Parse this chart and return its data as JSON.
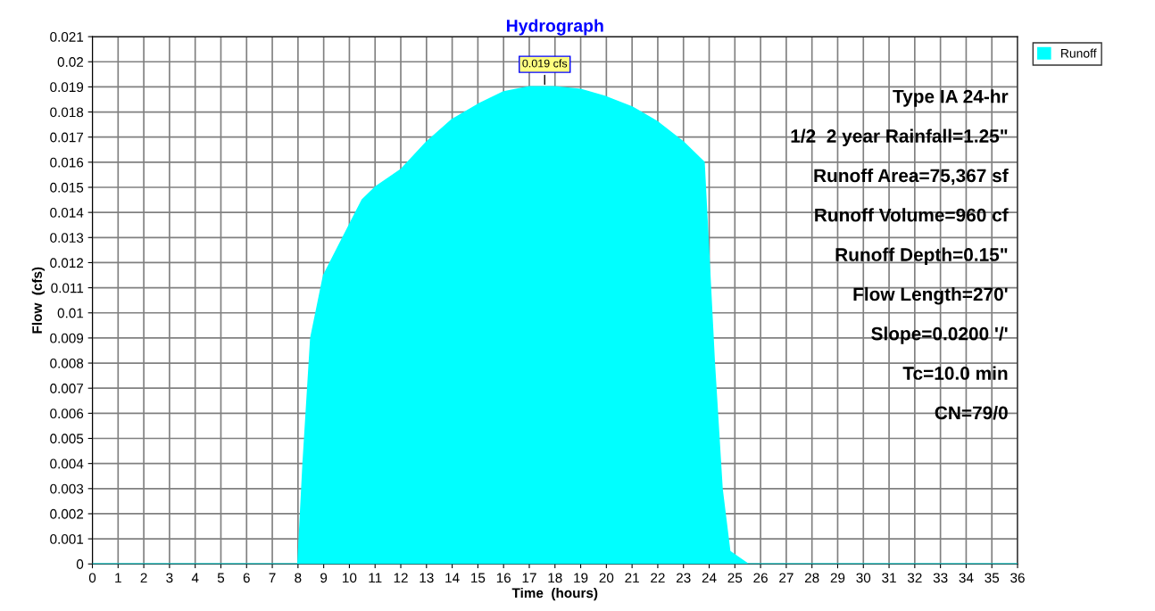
{
  "chart_data": {
    "type": "area",
    "title": "Hydrograph",
    "xlabel": "Time  (hours)",
    "ylabel": "Flow  (cfs)",
    "x": [
      0,
      8,
      8.2,
      8.5,
      9,
      9.5,
      10,
      10.5,
      11,
      12,
      13,
      14,
      15,
      16,
      17,
      18,
      19,
      20,
      21,
      22,
      23,
      23.8,
      24.2,
      24.5,
      24.8,
      25.5,
      36
    ],
    "series": [
      {
        "name": "Runoff",
        "color": "#00ffff",
        "values": [
          0,
          0,
          0.004,
          0.009,
          0.0115,
          0.0125,
          0.0135,
          0.0145,
          0.015,
          0.0157,
          0.0168,
          0.0177,
          0.0183,
          0.0188,
          0.019,
          0.019,
          0.0189,
          0.0186,
          0.0182,
          0.0176,
          0.0168,
          0.016,
          0.008,
          0.003,
          0.0005,
          0,
          0
        ]
      }
    ],
    "annotations": [
      {
        "text": "0.019 cfs",
        "x": 17.6,
        "y": 0.019
      },
      "Type IA 24-hr",
      "1/2  2 year Rainfall=1.25\"",
      "Runoff Area=75,367 sf",
      "Runoff Volume=960 cf",
      "Runoff Depth=0.15\"",
      "Flow Length=270'",
      "Slope=0.0200 '/'",
      "Tc=10.0 min",
      "CN=79/0"
    ],
    "xlim": [
      0,
      36
    ],
    "xticks": [
      0,
      1,
      2,
      3,
      4,
      5,
      6,
      7,
      8,
      9,
      10,
      11,
      12,
      13,
      14,
      15,
      16,
      17,
      18,
      19,
      20,
      21,
      22,
      23,
      24,
      25,
      26,
      27,
      28,
      29,
      30,
      31,
      32,
      33,
      34,
      35,
      36
    ],
    "ylim": [
      0,
      0.021
    ],
    "yticks": [
      0,
      0.001,
      0.002,
      0.003,
      0.004,
      0.005,
      0.006,
      0.007,
      0.008,
      0.009,
      0.01,
      0.011,
      0.012,
      0.013,
      0.014,
      0.015,
      0.016,
      0.017,
      0.018,
      0.019,
      0.02,
      0.021
    ],
    "grid": true,
    "legend": "top right"
  }
}
